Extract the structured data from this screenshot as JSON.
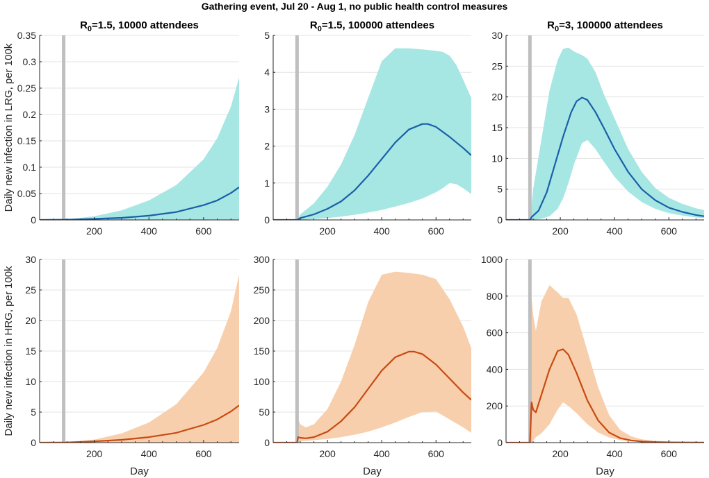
{
  "figure_title": "Gathering event, Jul 20 - Aug 1, no public health control measures",
  "colors": {
    "lrg_band": "#a6e6e3",
    "lrg_line": "#1a5fa8",
    "hrg_band": "#f8cfac",
    "hrg_line": "#c84a12",
    "event_bar": "#bfbfbf",
    "grid": "#e3e3e3",
    "axis": "#262626"
  },
  "chart_data": [
    {
      "type": "area",
      "row": "LRG",
      "title": {
        "pre": "R",
        "sub": "0",
        "post": "=1.5, 10000 attendees"
      },
      "ylabel": "Daily new infection in LRG, per 100k",
      "xlabel": "",
      "xlim": [
        0,
        730
      ],
      "ylim": [
        0,
        0.35
      ],
      "xticks": [
        200,
        400,
        600
      ],
      "yticks": [
        0,
        0.05,
        0.1,
        0.15,
        0.2,
        0.25,
        0.3,
        0.35
      ],
      "ytick_labels": [
        "0",
        "0.05",
        "0.1",
        "0.15",
        "0.2",
        "0.25",
        "0.3",
        "0.35"
      ],
      "grid": true,
      "event_day": 88,
      "band": {
        "x": [
          0,
          100,
          200,
          300,
          400,
          500,
          600,
          650,
          700,
          730
        ],
        "lower": [
          0,
          0,
          0,
          0,
          0,
          0,
          0,
          0,
          0,
          0
        ],
        "upper": [
          0,
          0.001,
          0.007,
          0.018,
          0.037,
          0.066,
          0.115,
          0.155,
          0.215,
          0.27
        ]
      },
      "mean": {
        "x": [
          0,
          100,
          200,
          300,
          400,
          500,
          600,
          650,
          700,
          730
        ],
        "y": [
          0,
          0.0005,
          0.002,
          0.004,
          0.008,
          0.015,
          0.028,
          0.037,
          0.051,
          0.062
        ]
      }
    },
    {
      "type": "area",
      "row": "LRG",
      "title": {
        "pre": "R",
        "sub": "0",
        "post": "=1.5, 100000 attendees"
      },
      "ylabel": "",
      "xlabel": "",
      "xlim": [
        0,
        730
      ],
      "ylim": [
        0,
        5
      ],
      "xticks": [
        200,
        400,
        600
      ],
      "yticks": [
        0,
        1,
        2,
        3,
        4,
        5
      ],
      "ytick_labels": [
        "0",
        "1",
        "2",
        "3",
        "4",
        "5"
      ],
      "grid": true,
      "event_day": 88,
      "band": {
        "x": [
          88,
          100,
          150,
          200,
          250,
          300,
          350,
          400,
          450,
          500,
          550,
          600,
          625,
          650,
          675,
          700,
          730
        ],
        "lower": [
          0,
          0,
          0.02,
          0.05,
          0.09,
          0.14,
          0.2,
          0.27,
          0.36,
          0.46,
          0.58,
          0.75,
          0.86,
          1.0,
          0.97,
          0.86,
          0.7
        ],
        "upper": [
          0,
          0.15,
          0.45,
          0.9,
          1.5,
          2.3,
          3.3,
          4.3,
          4.65,
          4.65,
          4.62,
          4.58,
          4.55,
          4.45,
          4.2,
          3.8,
          3.3
        ]
      },
      "mean": {
        "x": [
          0,
          88,
          100,
          150,
          200,
          250,
          300,
          350,
          400,
          450,
          500,
          550,
          570,
          600,
          650,
          700,
          730
        ],
        "y": [
          0,
          0,
          0.05,
          0.15,
          0.3,
          0.5,
          0.8,
          1.2,
          1.65,
          2.1,
          2.45,
          2.6,
          2.6,
          2.52,
          2.25,
          1.95,
          1.75
        ]
      }
    },
    {
      "type": "area",
      "row": "LRG",
      "title": {
        "pre": "R",
        "sub": "0",
        "post": "=3, 100000 attendees"
      },
      "ylabel": "",
      "xlabel": "",
      "xlim": [
        0,
        730
      ],
      "ylim": [
        0,
        30
      ],
      "xticks": [
        200,
        400,
        600
      ],
      "yticks": [
        0,
        5,
        10,
        15,
        20,
        25,
        30
      ],
      "ytick_labels": [
        "0",
        "5",
        "10",
        "15",
        "20",
        "25",
        "30"
      ],
      "grid": true,
      "event_day": 88,
      "band": {
        "x": [
          88,
          100,
          130,
          160,
          190,
          210,
          230,
          250,
          280,
          300,
          330,
          360,
          400,
          450,
          500,
          550,
          600,
          650,
          700,
          730
        ],
        "lower": [
          0,
          0,
          0.2,
          0.6,
          1.8,
          3.5,
          6,
          9,
          12.5,
          13,
          11.5,
          9.5,
          7,
          4.6,
          2.9,
          1.8,
          1.1,
          0.7,
          0.4,
          0.3
        ],
        "upper": [
          0,
          5,
          13,
          21,
          26,
          27.8,
          28,
          27.4,
          26.8,
          26.2,
          24,
          20.5,
          16.5,
          11.5,
          7.8,
          5.2,
          3.6,
          2.6,
          1.9,
          1.6
        ]
      },
      "mean": {
        "x": [
          0,
          88,
          95,
          120,
          150,
          180,
          210,
          240,
          260,
          280,
          300,
          330,
          360,
          400,
          450,
          500,
          550,
          600,
          650,
          700,
          730
        ],
        "y": [
          0,
          0,
          0.5,
          1.5,
          4.5,
          9,
          13.5,
          17.5,
          19.3,
          19.9,
          19.5,
          17.5,
          15,
          11.5,
          7.8,
          5,
          3.2,
          2,
          1.3,
          0.8,
          0.6
        ]
      }
    },
    {
      "type": "area",
      "row": "HRG",
      "title": null,
      "ylabel": "Daily new infection in HRG, per 100k",
      "xlabel": "Day",
      "xlim": [
        0,
        730
      ],
      "ylim": [
        0,
        30
      ],
      "xticks": [
        200,
        400,
        600
      ],
      "yticks": [
        0,
        5,
        10,
        15,
        20,
        25,
        30
      ],
      "ytick_labels": [
        "0",
        "5",
        "10",
        "15",
        "20",
        "25",
        "30"
      ],
      "grid": true,
      "event_day": 88,
      "band": {
        "x": [
          0,
          100,
          200,
          300,
          400,
          500,
          600,
          650,
          700,
          730
        ],
        "lower": [
          0,
          0,
          0,
          0,
          0,
          0,
          0,
          0,
          0,
          0
        ],
        "upper": [
          0,
          0.08,
          0.5,
          1.5,
          3.3,
          6.3,
          11.5,
          15.5,
          21.5,
          27.5
        ]
      },
      "mean": {
        "x": [
          0,
          100,
          200,
          300,
          400,
          500,
          600,
          650,
          700,
          730
        ],
        "y": [
          0,
          0.03,
          0.2,
          0.45,
          0.9,
          1.6,
          2.9,
          3.8,
          5.1,
          6.1
        ]
      }
    },
    {
      "type": "area",
      "row": "HRG",
      "title": null,
      "ylabel": "",
      "xlabel": "Day",
      "xlim": [
        0,
        730
      ],
      "ylim": [
        0,
        300
      ],
      "xticks": [
        200,
        400,
        600
      ],
      "yticks": [
        0,
        50,
        100,
        150,
        200,
        250,
        300
      ],
      "ytick_labels": [
        "0",
        "50",
        "100",
        "150",
        "200",
        "250",
        "300"
      ],
      "grid": true,
      "event_day": 88,
      "band": {
        "x": [
          88,
          92,
          100,
          120,
          150,
          200,
          250,
          300,
          350,
          400,
          450,
          500,
          550,
          600,
          650,
          700,
          730
        ],
        "lower": [
          0,
          0,
          2,
          3,
          4,
          6,
          9,
          13,
          18,
          25,
          33,
          42,
          50,
          51,
          38,
          25,
          16
        ],
        "upper": [
          0,
          38,
          30,
          25,
          30,
          55,
          100,
          160,
          230,
          275,
          280,
          278,
          275,
          268,
          235,
          190,
          155
        ]
      },
      "mean": {
        "x": [
          0,
          88,
          92,
          100,
          120,
          150,
          200,
          250,
          300,
          350,
          400,
          450,
          500,
          520,
          550,
          600,
          650,
          700,
          730
        ],
        "y": [
          0,
          0,
          9,
          8,
          7,
          9,
          18,
          35,
          58,
          88,
          118,
          140,
          149,
          149,
          145,
          128,
          105,
          82,
          70
        ]
      }
    },
    {
      "type": "area",
      "row": "HRG",
      "title": null,
      "ylabel": "",
      "xlabel": "Day",
      "xlim": [
        0,
        730
      ],
      "ylim": [
        0,
        1000
      ],
      "xticks": [
        200,
        400,
        600
      ],
      "yticks": [
        0,
        200,
        400,
        600,
        800,
        1000
      ],
      "ytick_labels": [
        "0",
        "200",
        "400",
        "600",
        "800",
        "1000"
      ],
      "grid": true,
      "event_day": 88,
      "band": {
        "x": [
          88,
          92,
          100,
          110,
          130,
          160,
          190,
          210,
          230,
          260,
          300,
          340,
          380,
          420,
          460,
          500,
          550,
          600,
          650,
          700,
          730
        ],
        "lower": [
          0,
          0,
          10,
          30,
          50,
          100,
          180,
          220,
          200,
          160,
          100,
          55,
          28,
          14,
          7,
          4,
          2,
          1,
          0,
          0,
          0
        ],
        "upper": [
          0,
          820,
          700,
          610,
          770,
          860,
          820,
          790,
          790,
          700,
          500,
          300,
          150,
          70,
          35,
          18,
          10,
          6,
          3,
          2,
          1
        ]
      },
      "mean": {
        "x": [
          0,
          88,
          94,
          100,
          110,
          130,
          160,
          190,
          210,
          230,
          260,
          300,
          340,
          380,
          420,
          460,
          500,
          550,
          600,
          650,
          700,
          730
        ],
        "y": [
          0,
          0,
          220,
          180,
          165,
          260,
          400,
          500,
          510,
          480,
          380,
          230,
          120,
          55,
          25,
          12,
          6,
          3,
          1.5,
          1,
          0.5,
          0.3
        ]
      }
    }
  ]
}
